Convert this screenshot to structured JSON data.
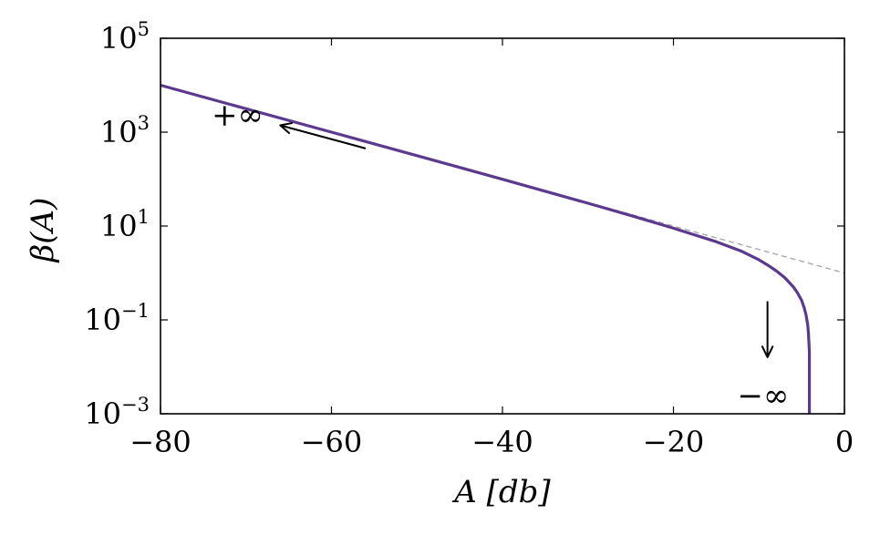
{
  "chart_data": {
    "type": "line",
    "title": "",
    "xlabel": "A [db]",
    "ylabel": "β(A)",
    "xlim": [
      -80,
      0
    ],
    "ylim": [
      0.001,
      100000
    ],
    "yscale": "log",
    "grid": false,
    "legend": "none",
    "x_ticks": [
      {
        "value": -80,
        "label": "−80"
      },
      {
        "value": -60,
        "label": "−60"
      },
      {
        "value": -40,
        "label": "−40"
      },
      {
        "value": -20,
        "label": "−20"
      },
      {
        "value": 0,
        "label": "0"
      }
    ],
    "y_ticks": [
      {
        "value": 0.001,
        "base": "10",
        "exp": "−3"
      },
      {
        "value": 0.1,
        "base": "10",
        "exp": "−1"
      },
      {
        "value": 10,
        "base": "10",
        "exp": "1"
      },
      {
        "value": 1000,
        "base": "10",
        "exp": "3"
      },
      {
        "value": 100000,
        "base": "10",
        "exp": "5"
      }
    ],
    "series": [
      {
        "style": "solid",
        "color": "#5b3a8e",
        "x": [
          -80,
          -70,
          -60,
          -50,
          -40,
          -30,
          -25,
          -20,
          -15,
          -12,
          -10,
          -9,
          -8,
          -7,
          -6,
          -5.5,
          -5,
          -4.7,
          -4.5,
          -4.3,
          -4.2,
          -4.1
        ],
        "y": [
          9999,
          3161,
          999,
          315,
          99,
          30.6,
          16.8,
          9.0,
          4.63,
          2.88,
          1.9,
          1.48,
          1.12,
          0.8,
          0.51,
          0.38,
          0.26,
          0.18,
          0.13,
          0.08,
          0.05,
          0.02
        ]
      },
      {
        "style": "dashed",
        "color": "#aaaaaa",
        "x": [
          -30,
          0
        ],
        "y": [
          31.6,
          1
        ]
      }
    ],
    "annotations": [
      {
        "text": "+∞",
        "x": -71,
        "y": 2400,
        "arrow_from": [
          -56,
          450
        ],
        "arrow_to": [
          -66,
          1400
        ]
      },
      {
        "text": "−∞",
        "x": -9.5,
        "y": 0.0025,
        "arrow_from": [
          -9,
          0.25
        ],
        "arrow_to": [
          -9,
          0.016
        ]
      }
    ]
  }
}
